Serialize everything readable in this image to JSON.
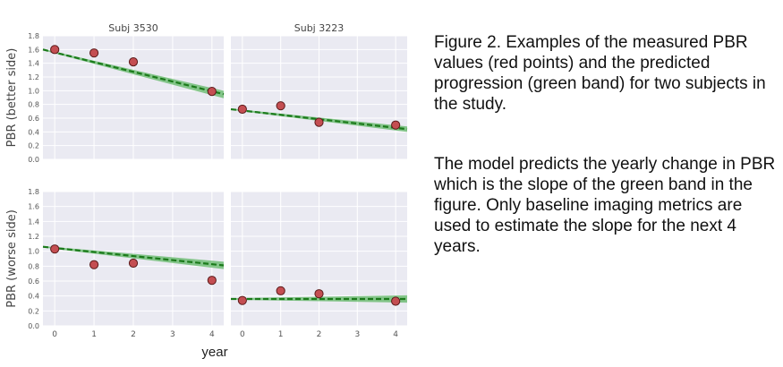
{
  "chart_data": {
    "type": "scatter",
    "xlabel": "year",
    "row_ylabels": [
      "PBR (better side)",
      "PBR (worse side)"
    ],
    "col_titles": [
      "Subj 3530",
      "Subj 3223"
    ],
    "xlim": [
      -0.3,
      4.3
    ],
    "ylim": [
      0,
      1.8
    ],
    "x_ticks": [
      0,
      1,
      2,
      3,
      4
    ],
    "y_ticks": [
      0.0,
      0.2,
      0.4,
      0.6,
      0.8,
      1.0,
      1.2,
      1.4,
      1.6,
      1.8
    ],
    "grid": true,
    "panels": [
      {
        "subject": "Subj 3530",
        "side": "better",
        "measured": {
          "x": [
            0,
            1,
            2,
            4
          ],
          "y": [
            1.6,
            1.55,
            1.42,
            0.99
          ]
        },
        "band": {
          "x": [
            -0.3,
            4.3
          ],
          "lower": [
            1.59,
            0.89
          ],
          "upper": [
            1.61,
            1.0
          ]
        },
        "line": {
          "x": [
            -0.3,
            4.3
          ],
          "y": [
            1.6,
            0.95
          ]
        }
      },
      {
        "subject": "Subj 3223",
        "side": "better",
        "measured": {
          "x": [
            0,
            1,
            2,
            4
          ],
          "y": [
            0.73,
            0.78,
            0.54,
            0.5
          ]
        },
        "band": {
          "x": [
            -0.3,
            4.3
          ],
          "lower": [
            0.72,
            0.4
          ],
          "upper": [
            0.74,
            0.48
          ]
        },
        "line": {
          "x": [
            -0.3,
            4.3
          ],
          "y": [
            0.73,
            0.44
          ]
        }
      },
      {
        "subject": "Subj 3530",
        "side": "worse",
        "measured": {
          "x": [
            0,
            1,
            2,
            4
          ],
          "y": [
            1.03,
            0.82,
            0.84,
            0.61
          ]
        },
        "band": {
          "x": [
            -0.3,
            4.3
          ],
          "lower": [
            1.05,
            0.76
          ],
          "upper": [
            1.07,
            0.86
          ]
        },
        "line": {
          "x": [
            -0.3,
            4.3
          ],
          "y": [
            1.06,
            0.81
          ]
        }
      },
      {
        "subject": "Subj 3223",
        "side": "worse",
        "measured": {
          "x": [
            0,
            1,
            2,
            4
          ],
          "y": [
            0.34,
            0.47,
            0.43,
            0.33
          ]
        },
        "band": {
          "x": [
            -0.3,
            4.3
          ],
          "lower": [
            0.35,
            0.31
          ],
          "upper": [
            0.37,
            0.41
          ]
        },
        "line": {
          "x": [
            -0.3,
            4.3
          ],
          "y": [
            0.36,
            0.36
          ]
        }
      }
    ],
    "colors": {
      "panel_bg": "#eaeaf2",
      "grid": "#ffffff",
      "band": "#4caf50",
      "line": "#1b7a1b",
      "point_fill": "#c44e52",
      "point_edge": "#5a1a1a",
      "tick_text": "#555555"
    }
  },
  "caption": {
    "paragraph1": "Figure 2. Examples of the measured PBR values (red points) and the predicted progression (green band) for two subjects in the study.",
    "paragraph2": "The model predicts the yearly change in PBR which is the slope of the green band in the figure. Only baseline imaging metrics are used to estimate the slope for the next 4 years."
  }
}
